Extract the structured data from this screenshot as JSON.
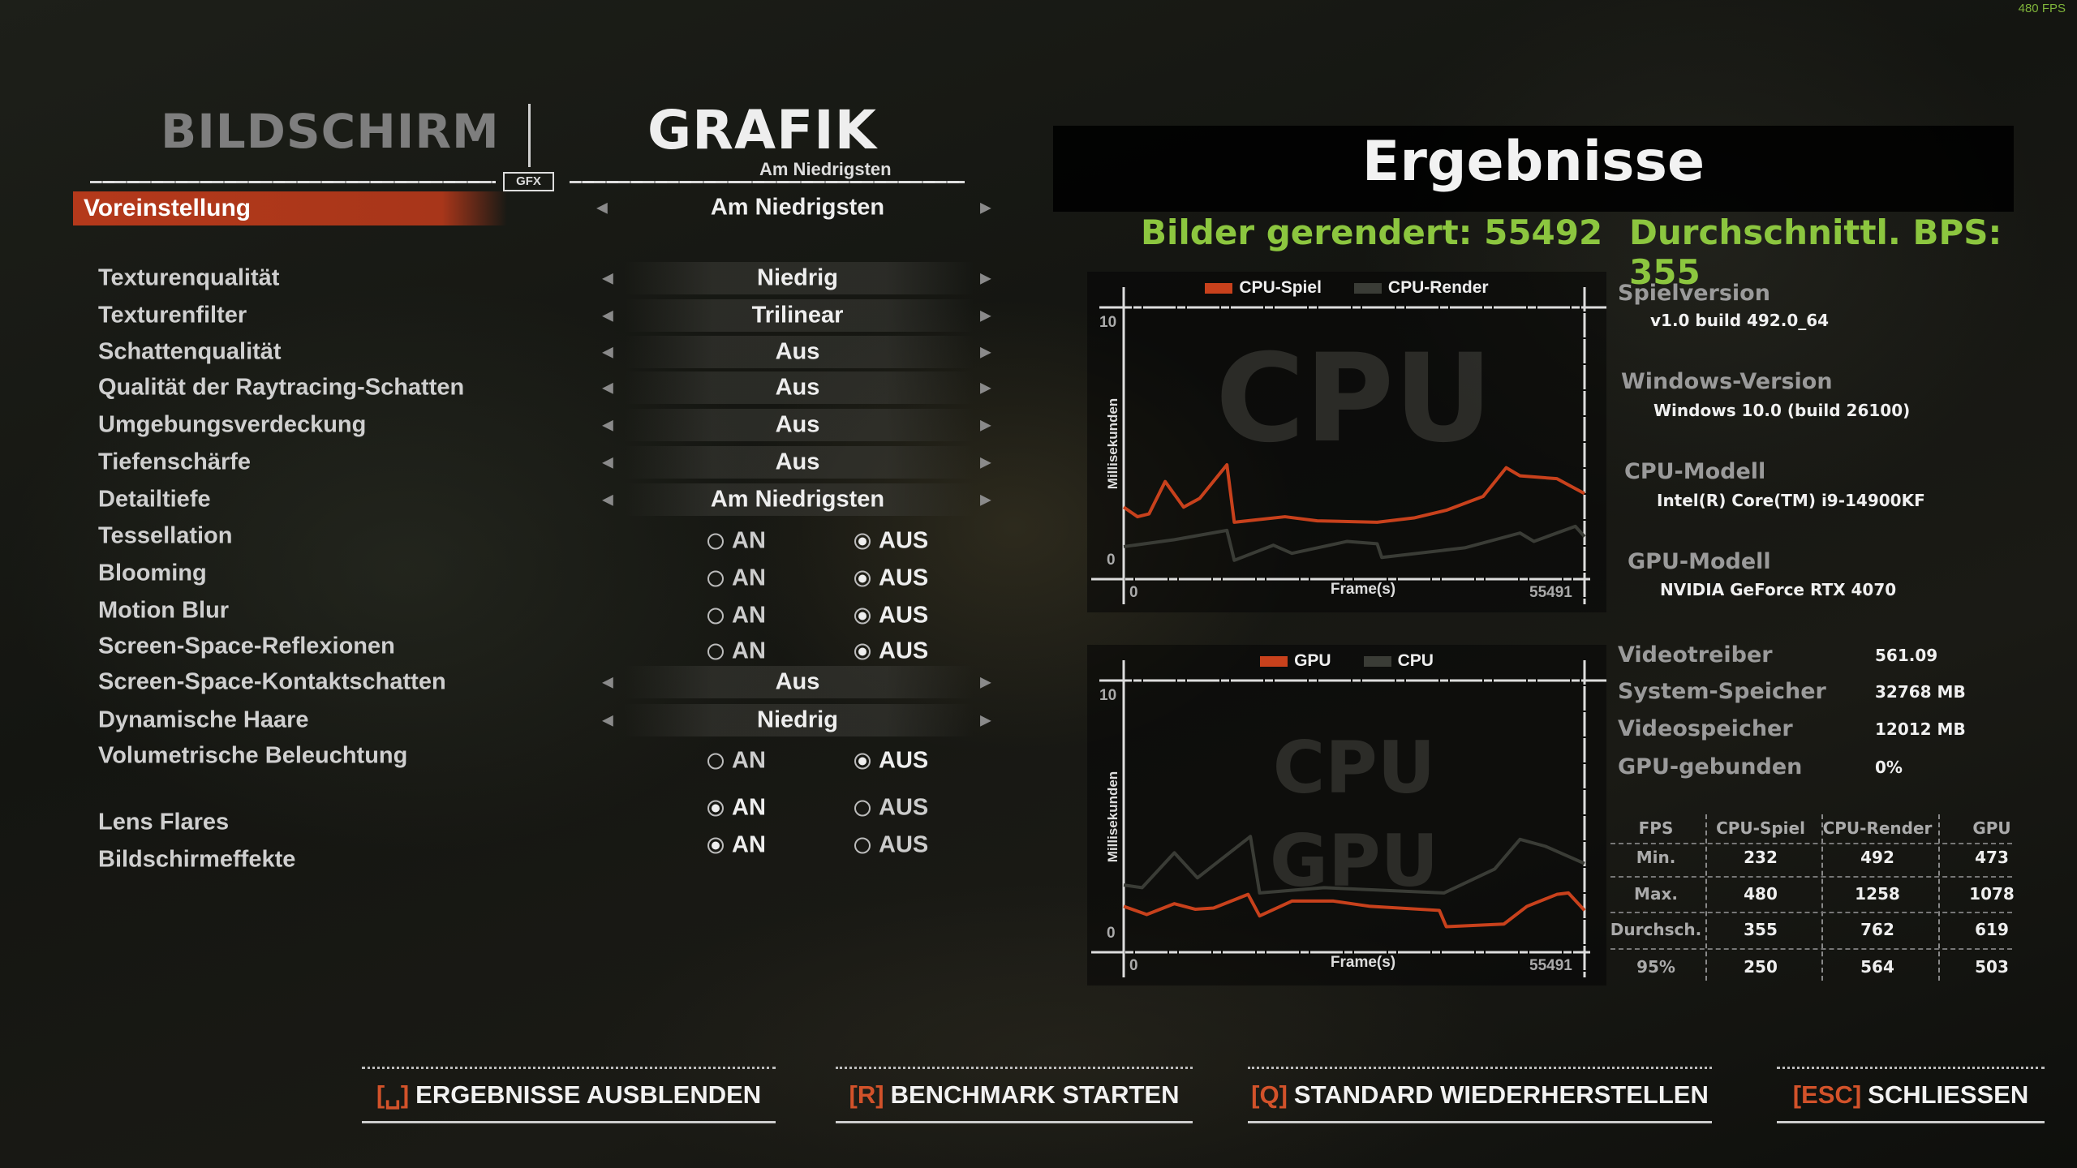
{
  "fps_counter": "480 FPS",
  "tabs": {
    "display": "BILDSCHIRM",
    "graphics": "GRAFIK",
    "active": "graphics",
    "gfx_logo": "GFX"
  },
  "preset": {
    "subtitle": "Am Niedrigsten",
    "label": "Voreinstellung",
    "value": "Am Niedrigsten"
  },
  "settings": [
    {
      "label": "Texturenqualität",
      "type": "select",
      "value": "Niedrig"
    },
    {
      "label": "Texturenfilter",
      "type": "select",
      "value": "Trilinear"
    },
    {
      "label": "Schattenqualität",
      "type": "select",
      "value": "Aus"
    },
    {
      "label": "Qualität der Raytracing-Schatten",
      "type": "select",
      "value": "Aus"
    },
    {
      "label": "Umgebungsverdeckung",
      "type": "select",
      "value": "Aus"
    },
    {
      "label": "Tiefenschärfe",
      "type": "select",
      "value": "Aus"
    },
    {
      "label": "Detailtiefe",
      "type": "select",
      "value": "Am Niedrigsten"
    },
    {
      "label": "Tessellation",
      "type": "toggle",
      "on": "AN",
      "off": "AUS",
      "value": "AUS"
    },
    {
      "label": "Blooming",
      "type": "toggle",
      "on": "AN",
      "off": "AUS",
      "value": "AUS"
    },
    {
      "label": "Motion Blur",
      "type": "toggle",
      "on": "AN",
      "off": "AUS",
      "value": "AUS"
    },
    {
      "label": "Screen-Space-Reflexionen",
      "type": "toggle",
      "on": "AN",
      "off": "AUS",
      "value": "AUS"
    },
    {
      "label": "Screen-Space-Kontaktschatten",
      "type": "select",
      "value": "Aus"
    },
    {
      "label": "Dynamische Haare",
      "type": "select",
      "value": "Niedrig"
    },
    {
      "label": "Volumetrische Beleuchtung",
      "type": "toggle",
      "on": "AN",
      "off": "AUS",
      "value": "AUS"
    },
    {
      "label": "Lens Flares",
      "type": "toggle",
      "on": "AN",
      "off": "AUS",
      "value": "AN"
    },
    {
      "label": "Bildschirmeffekte",
      "type": "toggle",
      "on": "AN",
      "off": "AUS",
      "value": "AN"
    }
  ],
  "results": {
    "title": "Ergebnisse",
    "frames_rendered": "Bilder gerendert: 55492",
    "avg_fps": "Durchschnittl. BPS: 355",
    "accent_green": "#8cc63f",
    "info": [
      {
        "label": "Spielversion",
        "value": "v1.0 build 492.0_64"
      },
      {
        "label": "Windows-Version",
        "value": "Windows 10.0 (build 26100)"
      },
      {
        "label": "CPU-Modell",
        "value": "Intel(R) Core(TM) i9-14900KF"
      },
      {
        "label": "GPU-Modell",
        "value": "NVIDIA GeForce RTX 4070"
      }
    ],
    "stats": [
      {
        "label": "Videotreiber",
        "value": "561.09"
      },
      {
        "label": "System-Speicher",
        "value": "32768 MB"
      },
      {
        "label": "Videospeicher",
        "value": "12012 MB"
      },
      {
        "label": "GPU-gebunden",
        "value": "0%"
      }
    ],
    "fps_table": {
      "headers": [
        "FPS",
        "CPU-Spiel",
        "CPU-Render",
        "GPU"
      ],
      "rows": [
        [
          "Min.",
          "232",
          "492",
          "473"
        ],
        [
          "Max.",
          "480",
          "1258",
          "1078"
        ],
        [
          "Durchsch.",
          "355",
          "762",
          "619"
        ],
        [
          "95%",
          "250",
          "564",
          "503"
        ]
      ]
    }
  },
  "chart_data": [
    {
      "type": "line",
      "watermark": [
        "CPU"
      ],
      "xlabel": "Frame(s)",
      "ylabel": "Millisekunden",
      "xlim": [
        0,
        55491
      ],
      "ylim": [
        0,
        10
      ],
      "xticks": [
        "0",
        "55491"
      ],
      "yticks": [
        "0",
        "10"
      ],
      "legend": "top",
      "series": [
        {
          "name": "CPU-Spiel",
          "color": "#c8411c",
          "x": [
            0,
            1665,
            3052,
            4994,
            7214,
            9156,
            12430,
            13318,
            19422,
            23306,
            30520,
            34959,
            38844,
            43283,
            46058,
            47723,
            52162,
            55491
          ],
          "values": [
            2.33,
            1.93,
            2.05,
            3.4,
            2.33,
            2.7,
            4.1,
            1.7,
            1.93,
            1.76,
            1.7,
            1.88,
            2.2,
            2.78,
            3.98,
            3.64,
            3.52,
            2.9
          ]
        },
        {
          "name": "CPU-Render",
          "color": "#3a3c36",
          "x": [
            0,
            6104,
            12430,
            13318,
            18034,
            20254,
            26912,
            30520,
            31075,
            41063,
            47723,
            49387,
            54381,
            55491
          ],
          "values": [
            0.68,
            0.97,
            1.36,
            0.11,
            0.74,
            0.4,
            0.9,
            0.8,
            0.23,
            0.63,
            1.25,
            0.9,
            1.53,
            1.1
          ]
        }
      ]
    },
    {
      "type": "line",
      "watermark": [
        "CPU",
        "GPU"
      ],
      "xlabel": "Frame(s)",
      "ylabel": "Millisekunden",
      "xlim": [
        0,
        55491
      ],
      "ylim": [
        0,
        10
      ],
      "xticks": [
        "0",
        "55491"
      ],
      "yticks": [
        "0",
        "10"
      ],
      "legend": "top",
      "series": [
        {
          "name": "GPU",
          "color": "#c8411c",
          "x": [
            0,
            2775,
            6104,
            8601,
            10821,
            14982,
            16369,
            20254,
            25248,
            29687,
            38011,
            38844,
            45781,
            48555,
            52162,
            53549,
            55491
          ],
          "values": [
            1.24,
            0.9,
            1.35,
            1.12,
            1.17,
            1.74,
            0.84,
            1.46,
            1.46,
            1.24,
            1.07,
            0.39,
            0.5,
            1.24,
            1.74,
            1.8,
            1.07
          ]
        },
        {
          "name": "CPU",
          "color": "#3a3c36",
          "x": [
            0,
            2219,
            6104,
            8878,
            15260,
            16369,
            24138,
            38566,
            44670,
            47723,
            50775,
            55491
          ],
          "values": [
            2.13,
            2.02,
            3.48,
            2.43,
            4.16,
            1.8,
            2.02,
            1.8,
            2.8,
            4.04,
            3.75,
            3.03
          ]
        }
      ]
    }
  ],
  "footer": [
    {
      "key": "␣",
      "label": "ERGEBNISSE AUSBLENDEN"
    },
    {
      "key": "R",
      "label": "BENCHMARK STARTEN"
    },
    {
      "key": "Q",
      "label": "STANDARD WIEDERHERSTELLEN"
    },
    {
      "key": "ESC",
      "label": "SCHLIESSEN"
    }
  ]
}
